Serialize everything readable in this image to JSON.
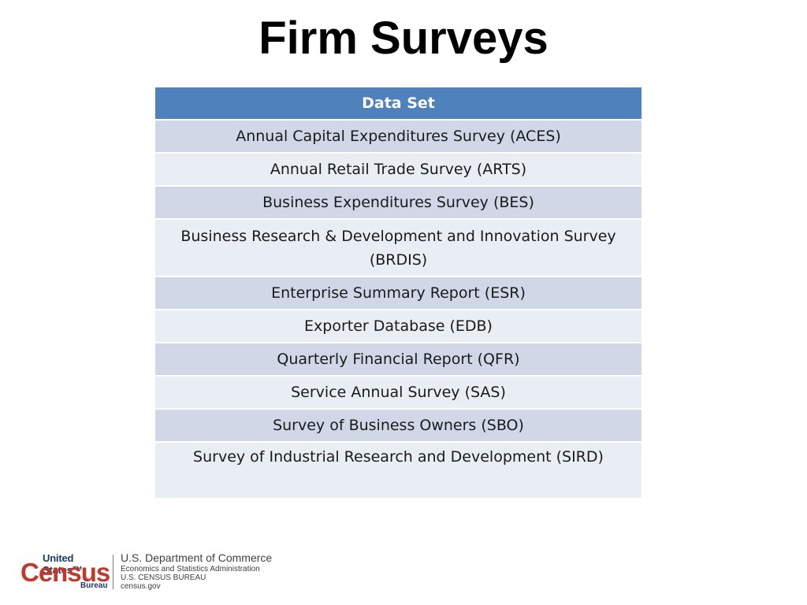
{
  "slide": {
    "title": "Firm Surveys"
  },
  "table": {
    "header": "Data Set",
    "rows": [
      "Annual Capital Expenditures Survey (ACES)",
      "Annual Retail Trade Survey (ARTS)",
      "Business Expenditures Survey (BES)",
      "Business Research & Development and Innovation Survey (BRDIS)",
      "Enterprise Summary Report (ESR)",
      "Exporter Database (EDB)",
      "Quarterly Financial Report (QFR)",
      "Service Annual Survey (SAS)",
      "Survey of Business Owners (SBO)",
      "Survey of Industrial Research and Development (SIRD)"
    ],
    "colors": {
      "header": "#4f81bd",
      "row_odd": "#d0d8e8",
      "row_even": "#e9edf4"
    }
  },
  "footer": {
    "logo_top": "United States™",
    "logo_main": "Census",
    "logo_bottom": "Bureau",
    "dept_line1": "U.S. Department of Commerce",
    "dept_line2": "Economics and Statistics Administration",
    "dept_line3": "U.S. CENSUS BUREAU",
    "dept_line4": "census.gov"
  }
}
